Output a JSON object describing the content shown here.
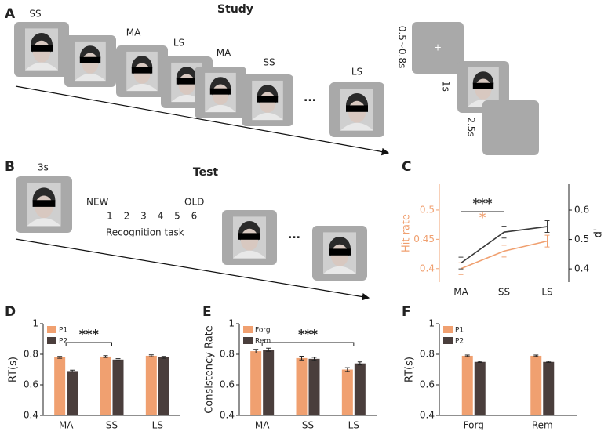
{
  "study": {
    "panel": "A",
    "title": "Study",
    "cards": [
      "SS",
      "MA",
      "LS",
      "MA",
      "SS",
      "LS"
    ],
    "ellipsis": "...",
    "fixation": "+",
    "timing": [
      "0.5~0.8s",
      "1s",
      "2.5s"
    ]
  },
  "test": {
    "panel": "B",
    "duration": "3s",
    "title": "Test",
    "scale_left": "NEW",
    "scale_right": "OLD",
    "scale": [
      1,
      2,
      3,
      4,
      5,
      6
    ],
    "task": "Recognition task",
    "ellipsis": "..."
  },
  "chart_data": [
    {
      "type": "line",
      "panel": "C",
      "categories": [
        "MA",
        "SS",
        "LS"
      ],
      "ylabel": "Hit rate",
      "y2label": "d'",
      "ylim": [
        0.377,
        0.544
      ],
      "yticks": [
        0.4,
        0.45,
        0.5
      ],
      "y2lim": [
        0.355,
        0.688
      ],
      "y2ticks": [
        0.4,
        0.5,
        0.6
      ],
      "series": [
        {
          "name": "Hit rate",
          "color": "#f0a070",
          "values": [
            0.4,
            0.43,
            0.447
          ],
          "errors": [
            0.01,
            0.01,
            0.01
          ]
        },
        {
          "name": "d'",
          "color": "#3a3a3a",
          "axis": "y2",
          "values": [
            0.42,
            0.525,
            0.544
          ],
          "errors": [
            0.02,
            0.02,
            0.02
          ]
        }
      ],
      "annotations": [
        {
          "text": "***",
          "color": "#3a3a3a"
        },
        {
          "text": "*",
          "color": "#f0a070"
        }
      ]
    },
    {
      "type": "bar",
      "panel": "D",
      "categories": [
        "MA",
        "SS",
        "LS"
      ],
      "ylabel": "RT(s)",
      "ylim": [
        0.4,
        1
      ],
      "yticks": [
        0.4,
        0.6,
        0.8,
        1
      ],
      "series": [
        {
          "name": "P1",
          "color": "#f0a070",
          "values": [
            0.78,
            0.785,
            0.79
          ],
          "errors": [
            0.006,
            0.006,
            0.006
          ]
        },
        {
          "name": "P2",
          "color": "#4a3e3c",
          "values": [
            0.69,
            0.765,
            0.78
          ],
          "errors": [
            0.006,
            0.006,
            0.006
          ]
        }
      ],
      "annotations": [
        {
          "text": "***",
          "color": "#222"
        }
      ]
    },
    {
      "type": "bar",
      "panel": "E",
      "categories": [
        "MA",
        "SS",
        "LS"
      ],
      "ylabel": "Consistency Rate",
      "ylim": [
        0.4,
        1
      ],
      "yticks": [
        0.4,
        0.6,
        0.8,
        1
      ],
      "series": [
        {
          "name": "Forg",
          "color": "#f0a070",
          "values": [
            0.82,
            0.775,
            0.7
          ],
          "errors": [
            0.012,
            0.012,
            0.012
          ]
        },
        {
          "name": "Rem",
          "color": "#4a3e3c",
          "values": [
            0.83,
            0.77,
            0.74
          ],
          "errors": [
            0.01,
            0.01,
            0.01
          ]
        }
      ],
      "annotations": [
        {
          "text": "***",
          "color": "#222"
        }
      ]
    },
    {
      "type": "bar",
      "panel": "F",
      "categories": [
        "Forg",
        "Rem"
      ],
      "ylabel": "RT(s)",
      "ylim": [
        0.4,
        1
      ],
      "yticks": [
        0.4,
        0.6,
        0.8,
        1
      ],
      "series": [
        {
          "name": "P1",
          "color": "#f0a070",
          "values": [
            0.79,
            0.79
          ],
          "errors": [
            0.005,
            0.005
          ]
        },
        {
          "name": "P2",
          "color": "#4a3e3c",
          "values": [
            0.75,
            0.75
          ],
          "errors": [
            0.004,
            0.004
          ]
        }
      ],
      "annotations": []
    }
  ]
}
